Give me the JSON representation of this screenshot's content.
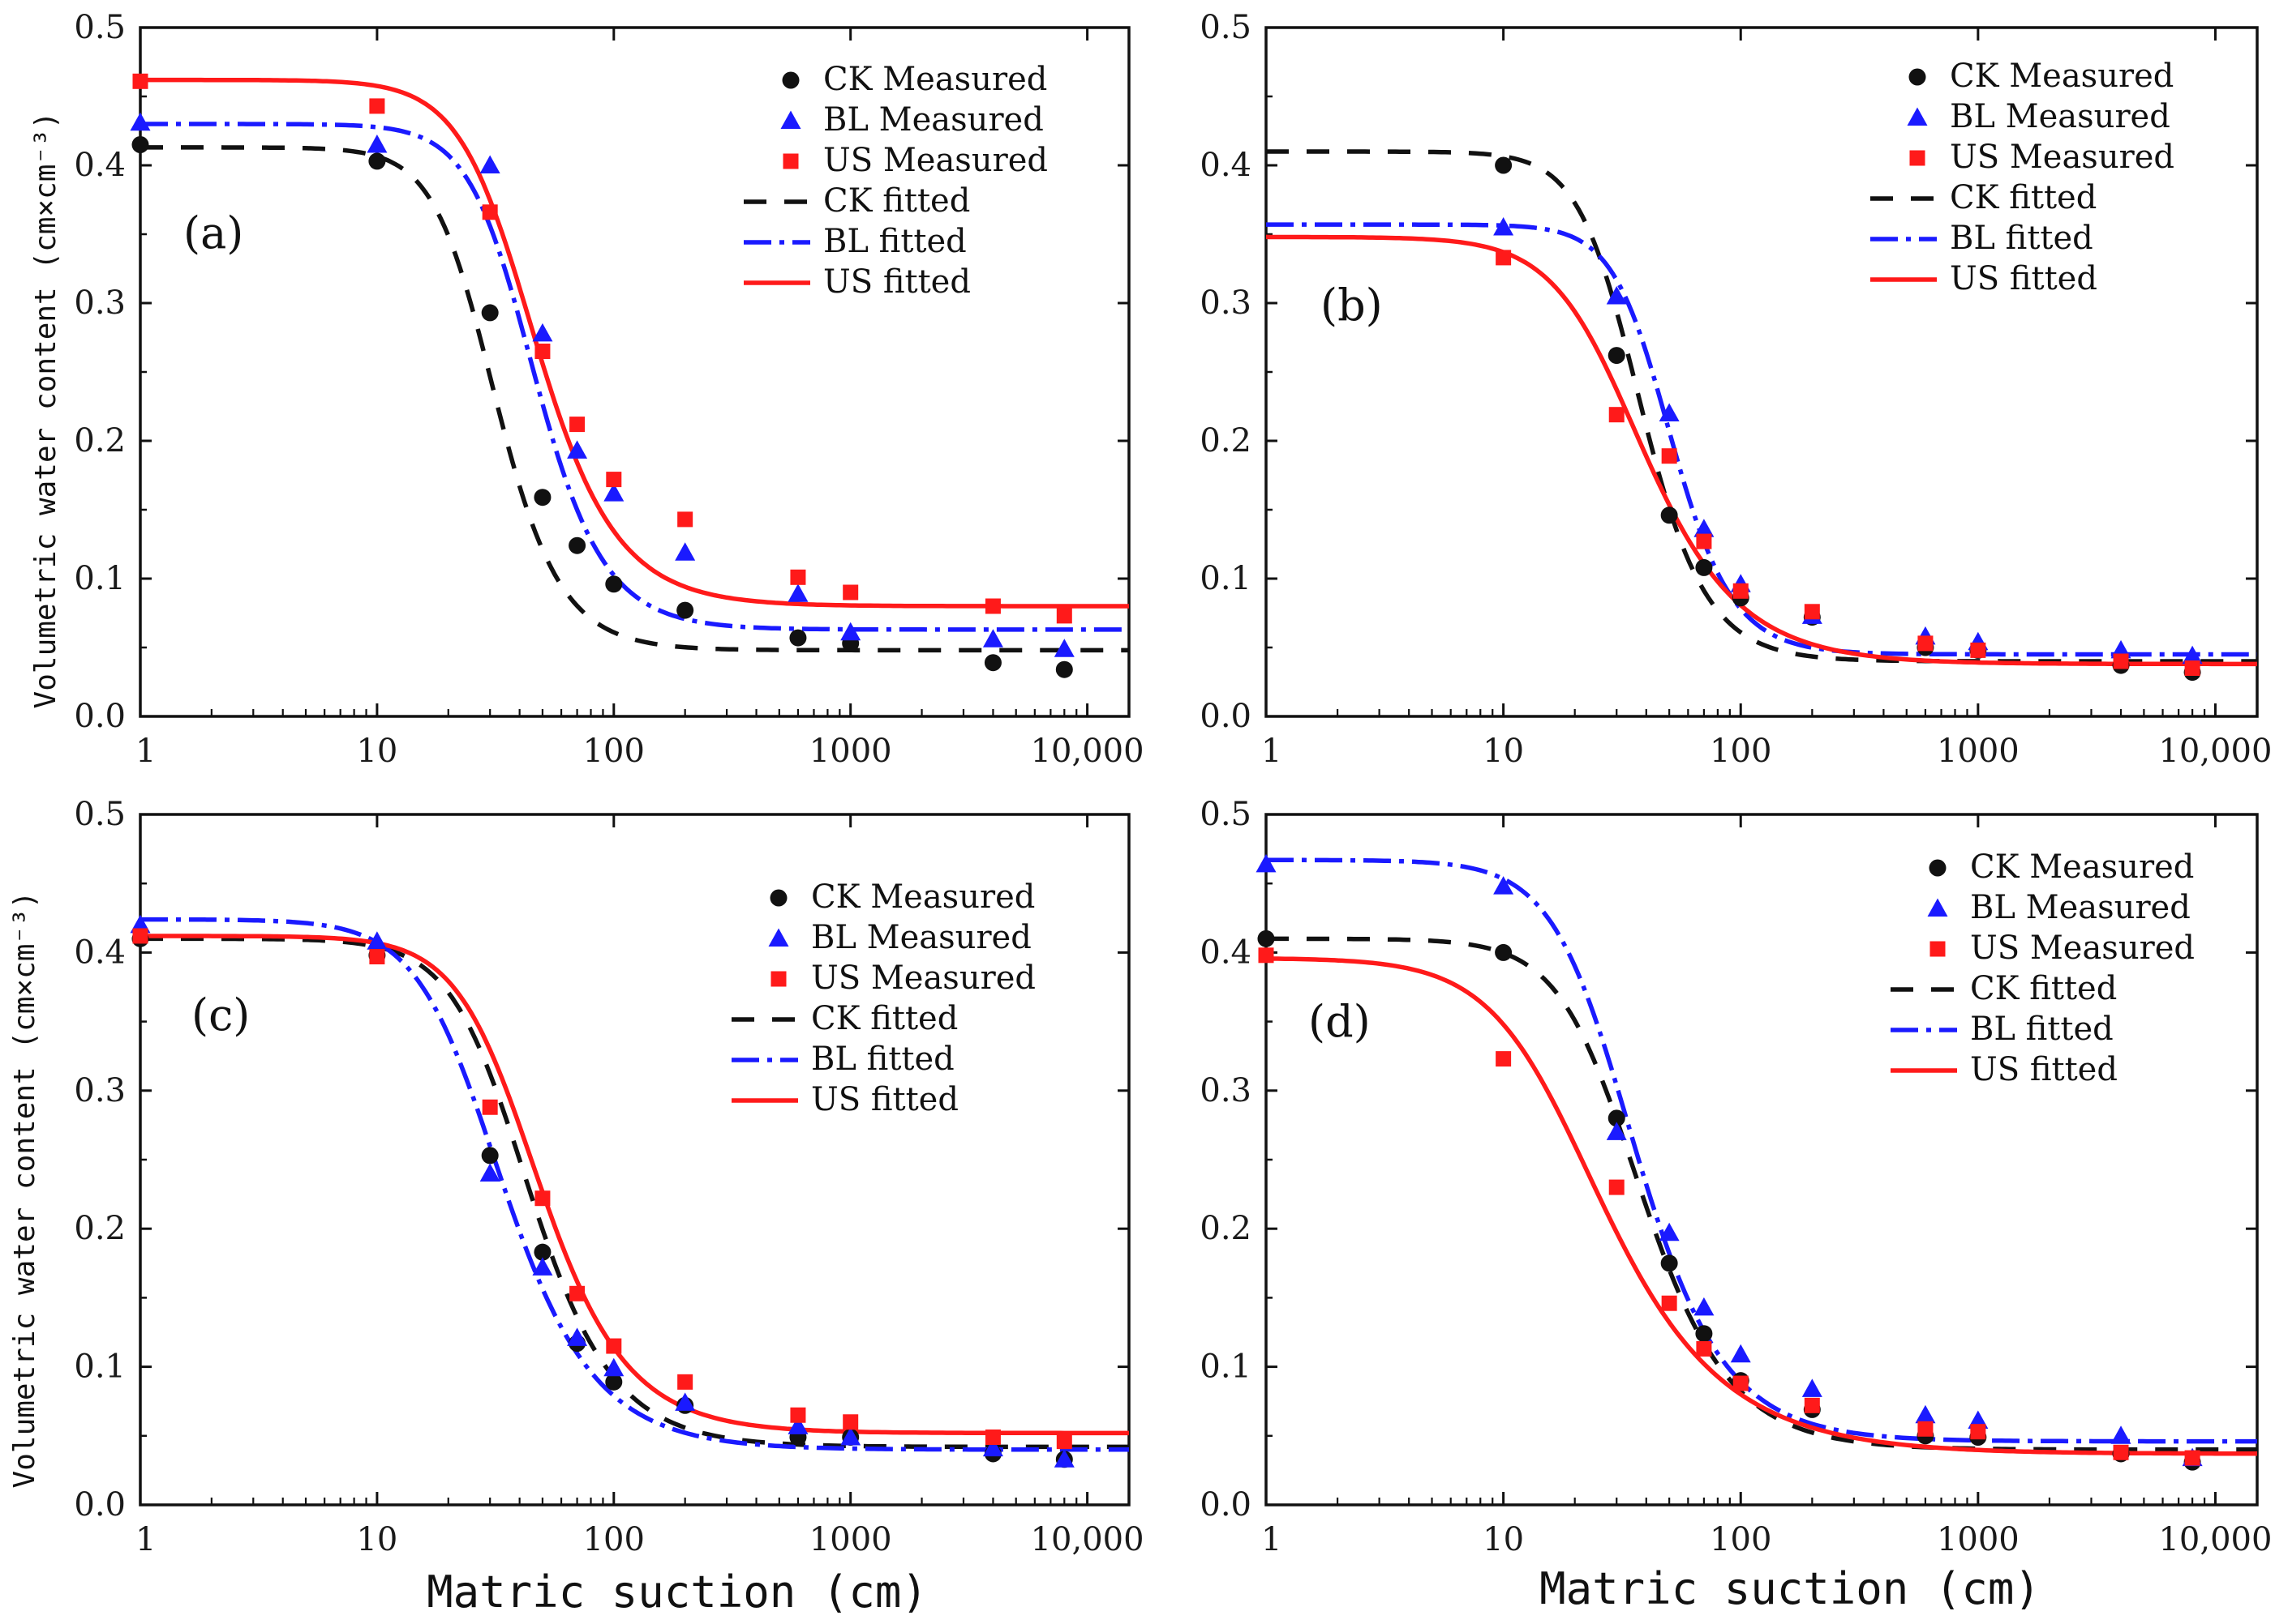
{
  "figure": {
    "xlabel": "Matric suction (cm)",
    "ylabel": "Volumetric water content (cm×cm⁻³)"
  },
  "colors": {
    "CK": "#111111",
    "BL": "#1a1aff",
    "US": "#ff1a1a"
  },
  "chart_data": [
    {
      "type": "scatter",
      "panel": "(a)",
      "xscale": "log",
      "xlim": [
        1,
        15000
      ],
      "ylim": [
        0,
        0.5
      ],
      "xticks": [
        "1",
        "10",
        "100",
        "1000",
        "10,000"
      ],
      "yticks": [
        "0.0",
        "0.1",
        "0.2",
        "0.3",
        "0.4",
        "0.5"
      ],
      "legend_position": "top-right",
      "x": [
        1,
        10,
        30,
        50,
        70,
        100,
        200,
        600,
        1000,
        4000,
        8000
      ],
      "measured": [
        {
          "name": "CK Measured",
          "values": [
            0.415,
            0.403,
            0.293,
            0.159,
            0.124,
            0.096,
            0.077,
            0.057,
            0.053,
            0.039,
            0.034
          ]
        },
        {
          "name": "BL Measured",
          "values": [
            0.431,
            0.415,
            0.4,
            0.278,
            0.193,
            0.162,
            0.119,
            0.089,
            0.061,
            0.056,
            0.049
          ]
        },
        {
          "name": "US Measured",
          "values": [
            0.461,
            0.443,
            0.366,
            0.265,
            0.212,
            0.172,
            0.143,
            0.101,
            0.09,
            0.08,
            0.073
          ]
        }
      ],
      "fitted": [
        {
          "name": "CK fitted",
          "theta_r": 0.048,
          "theta_s": 0.413,
          "alpha": 0.036,
          "n": 3.6
        },
        {
          "name": "BL fitted",
          "theta_r": 0.063,
          "theta_s": 0.43,
          "alpha": 0.025,
          "n": 3.4
        },
        {
          "name": "US fitted",
          "theta_r": 0.08,
          "theta_s": 0.462,
          "alpha": 0.026,
          "n": 3.0
        }
      ]
    },
    {
      "type": "scatter",
      "panel": "(b)",
      "xscale": "log",
      "xlim": [
        1,
        15000
      ],
      "ylim": [
        0,
        0.5
      ],
      "xticks": [
        "1",
        "10",
        "100",
        "1000",
        "10,000"
      ],
      "yticks": [
        "0.0",
        "0.1",
        "0.2",
        "0.3",
        "0.4",
        "0.5"
      ],
      "legend_position": "top-right",
      "x": [
        10,
        30,
        50,
        70,
        100,
        200,
        600,
        1000,
        4000,
        8000
      ],
      "measured": [
        {
          "name": "CK Measured",
          "values": [
            0.4,
            0.262,
            0.146,
            0.108,
            0.086,
            0.072,
            0.05,
            0.048,
            0.037,
            0.032
          ]
        },
        {
          "name": "BL Measured",
          "values": [
            0.355,
            0.305,
            0.22,
            0.136,
            0.096,
            0.073,
            0.058,
            0.054,
            0.048,
            0.044
          ]
        },
        {
          "name": "US Measured",
          "values": [
            0.333,
            0.219,
            0.189,
            0.127,
            0.091,
            0.076,
            0.053,
            0.048,
            0.04,
            0.035
          ]
        }
      ],
      "fitted": [
        {
          "name": "CK fitted",
          "theta_r": 0.04,
          "theta_s": 0.41,
          "alpha": 0.03,
          "n": 3.6
        },
        {
          "name": "BL fitted",
          "theta_r": 0.045,
          "theta_s": 0.357,
          "alpha": 0.022,
          "n": 3.8
        },
        {
          "name": "US fitted",
          "theta_r": 0.038,
          "theta_s": 0.348,
          "alpha": 0.034,
          "n": 2.6
        }
      ]
    },
    {
      "type": "scatter",
      "panel": "(c)",
      "xscale": "log",
      "xlim": [
        1,
        15000
      ],
      "ylim": [
        0,
        0.5
      ],
      "xticks": [
        "1",
        "10",
        "100",
        "1000",
        "10,000"
      ],
      "yticks": [
        "0.0",
        "0.1",
        "0.2",
        "0.3",
        "0.4",
        "0.5"
      ],
      "legend_position": "top-right",
      "x": [
        1,
        10,
        30,
        50,
        70,
        100,
        200,
        600,
        1000,
        4000,
        8000
      ],
      "measured": [
        {
          "name": "CK Measured",
          "values": [
            0.41,
            0.398,
            0.253,
            0.183,
            0.117,
            0.089,
            0.072,
            0.049,
            0.049,
            0.037,
            0.033
          ]
        },
        {
          "name": "BL Measured",
          "values": [
            0.42,
            0.408,
            0.24,
            0.172,
            0.121,
            0.099,
            0.074,
            0.057,
            0.049,
            0.041,
            0.033
          ]
        },
        {
          "name": "US Measured",
          "values": [
            0.412,
            0.397,
            0.288,
            0.222,
            0.153,
            0.115,
            0.089,
            0.065,
            0.06,
            0.049,
            0.046
          ]
        }
      ],
      "fitted": [
        {
          "name": "CK fitted",
          "theta_r": 0.042,
          "theta_s": 0.41,
          "alpha": 0.028,
          "n": 2.9
        },
        {
          "name": "BL fitted",
          "theta_r": 0.04,
          "theta_s": 0.424,
          "alpha": 0.038,
          "n": 2.7
        },
        {
          "name": "US fitted",
          "theta_r": 0.052,
          "theta_s": 0.412,
          "alpha": 0.026,
          "n": 2.8
        }
      ]
    },
    {
      "type": "scatter",
      "panel": "(d)",
      "xscale": "log",
      "xlim": [
        1,
        15000
      ],
      "ylim": [
        0,
        0.5
      ],
      "xticks": [
        "1",
        "10",
        "100",
        "1000",
        "10,000"
      ],
      "yticks": [
        "0.0",
        "0.1",
        "0.2",
        "0.3",
        "0.4",
        "0.5"
      ],
      "legend_position": "top-right",
      "x": [
        1,
        10,
        30,
        50,
        70,
        100,
        200,
        600,
        1000,
        4000,
        8000
      ],
      "measured": [
        {
          "name": "CK Measured",
          "values": [
            0.41,
            0.4,
            0.28,
            0.175,
            0.124,
            0.09,
            0.069,
            0.05,
            0.049,
            0.037,
            0.031
          ]
        },
        {
          "name": "BL Measured",
          "values": [
            0.464,
            0.448,
            0.27,
            0.197,
            0.143,
            0.109,
            0.084,
            0.065,
            0.061,
            0.05,
            0.034
          ]
        },
        {
          "name": "US Measured",
          "values": [
            0.398,
            0.323,
            0.23,
            0.146,
            0.113,
            0.088,
            0.072,
            0.055,
            0.053,
            0.038,
            0.034
          ]
        }
      ],
      "fitted": [
        {
          "name": "CK fitted",
          "theta_r": 0.04,
          "theta_s": 0.41,
          "alpha": 0.033,
          "n": 2.8
        },
        {
          "name": "BL fitted",
          "theta_r": 0.046,
          "theta_s": 0.467,
          "alpha": 0.035,
          "n": 2.8
        },
        {
          "name": "US fitted",
          "theta_r": 0.037,
          "theta_s": 0.396,
          "alpha": 0.058,
          "n": 2.2
        }
      ]
    }
  ]
}
